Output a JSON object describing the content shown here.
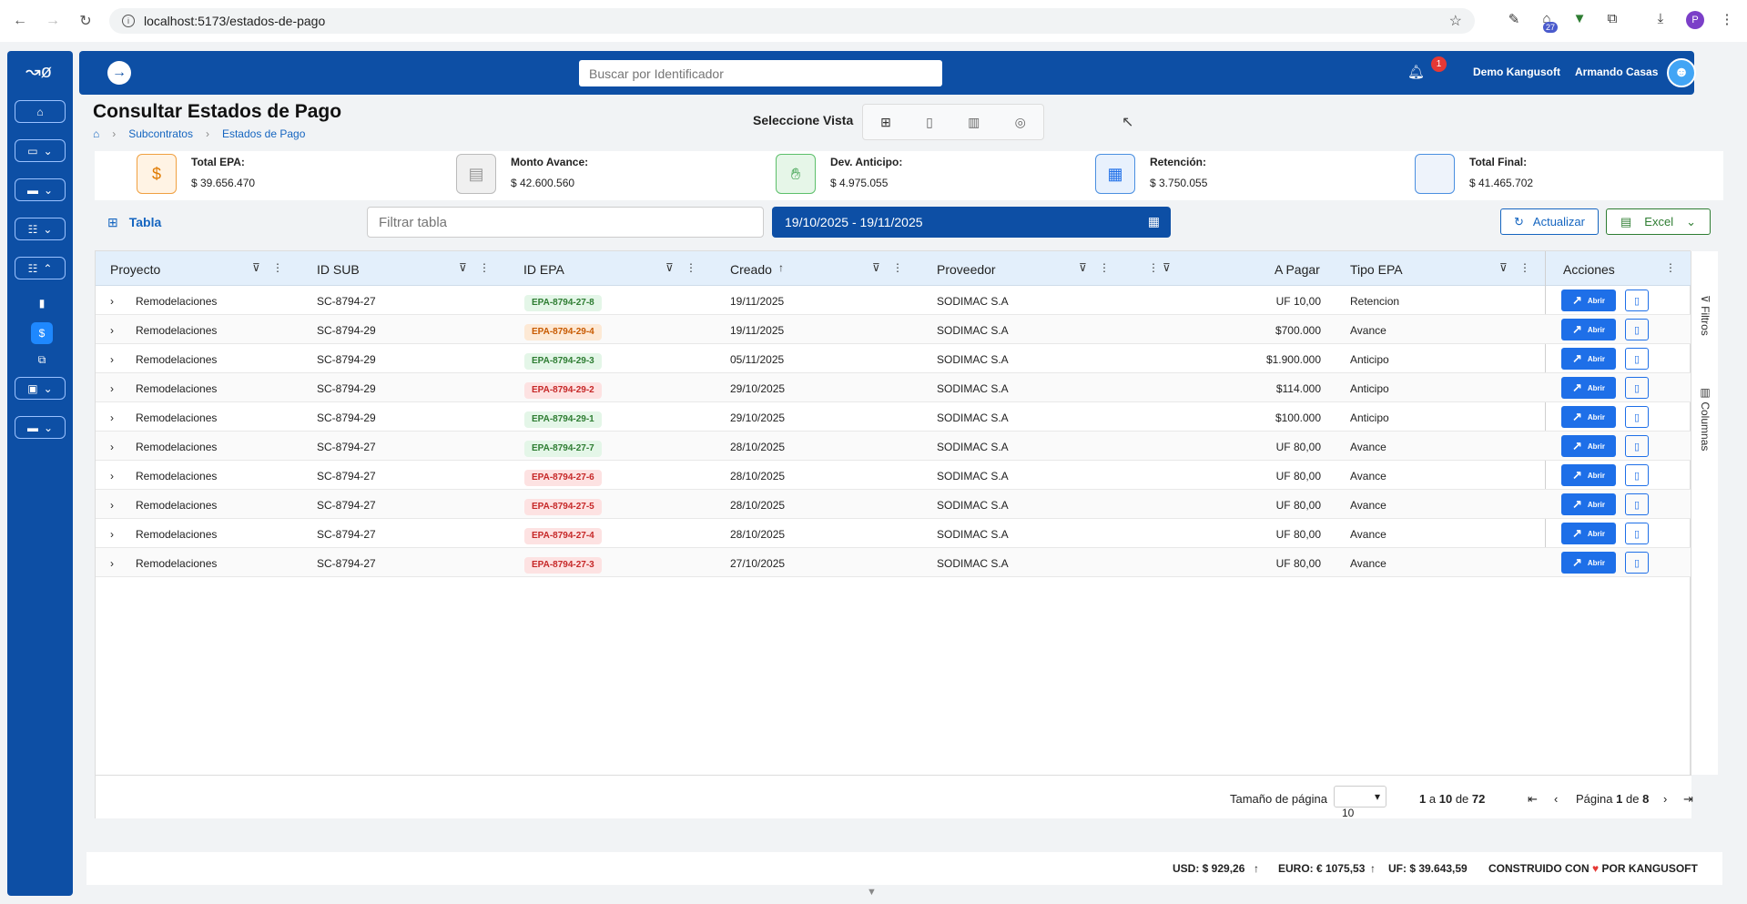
{
  "browser": {
    "url": "localhost:5173/estados-de-pago",
    "profile": "P",
    "ext_badge": "27"
  },
  "topbar": {
    "search_placeholder": "Buscar por Identificador",
    "notif_count": "1",
    "company": "Demo Kangusoft",
    "user": "Armando Casas"
  },
  "page": {
    "title": "Consultar Estados de Pago",
    "crumbs": [
      "Subcontratos",
      "Estados de Pago"
    ],
    "view_label": "Seleccione Vista"
  },
  "cards": [
    {
      "label": "Total EPA:",
      "value": "$ 39.656.470",
      "icon": "$"
    },
    {
      "label": "Monto Avance:",
      "value": "$ 42.600.560",
      "icon": "$"
    },
    {
      "label": "Dev. Anticipo:",
      "value": "$ 4.975.055",
      "icon": "hand"
    },
    {
      "label": "Retención:",
      "value": "$ 3.750.055",
      "icon": "calc"
    },
    {
      "label": "Total Final:",
      "value": "$ 41.465.702",
      "icon": ""
    }
  ],
  "toolbar": {
    "tab": "Tabla",
    "filter_placeholder": "Filtrar tabla",
    "date_range": "19/10/2025 - 19/11/2025",
    "refresh": "Actualizar",
    "excel": "Excel"
  },
  "columns": [
    "Proyecto",
    "ID SUB",
    "ID EPA",
    "Creado",
    "Proveedor",
    "A Pagar",
    "Tipo EPA",
    "Acciones"
  ],
  "rows": [
    {
      "proyecto": "Remodelaciones",
      "sub": "SC-8794-27",
      "epa": "EPA-8794-27-8",
      "status": "g",
      "creado": "19/11/2025",
      "prov": "SODIMAC S.A",
      "pagar": "UF 10,00",
      "tipo": "Retencion"
    },
    {
      "proyecto": "Remodelaciones",
      "sub": "SC-8794-29",
      "epa": "EPA-8794-29-4",
      "status": "o",
      "creado": "19/11/2025",
      "prov": "SODIMAC S.A",
      "pagar": "$700.000",
      "tipo": "Avance"
    },
    {
      "proyecto": "Remodelaciones",
      "sub": "SC-8794-29",
      "epa": "EPA-8794-29-3",
      "status": "g",
      "creado": "05/11/2025",
      "prov": "SODIMAC S.A",
      "pagar": "$1.900.000",
      "tipo": "Anticipo"
    },
    {
      "proyecto": "Remodelaciones",
      "sub": "SC-8794-29",
      "epa": "EPA-8794-29-2",
      "status": "r",
      "creado": "29/10/2025",
      "prov": "SODIMAC S.A",
      "pagar": "$114.000",
      "tipo": "Anticipo"
    },
    {
      "proyecto": "Remodelaciones",
      "sub": "SC-8794-29",
      "epa": "EPA-8794-29-1",
      "status": "g",
      "creado": "29/10/2025",
      "prov": "SODIMAC S.A",
      "pagar": "$100.000",
      "tipo": "Anticipo"
    },
    {
      "proyecto": "Remodelaciones",
      "sub": "SC-8794-27",
      "epa": "EPA-8794-27-7",
      "status": "g",
      "creado": "28/10/2025",
      "prov": "SODIMAC S.A",
      "pagar": "UF 80,00",
      "tipo": "Avance"
    },
    {
      "proyecto": "Remodelaciones",
      "sub": "SC-8794-27",
      "epa": "EPA-8794-27-6",
      "status": "r",
      "creado": "28/10/2025",
      "prov": "SODIMAC S.A",
      "pagar": "UF 80,00",
      "tipo": "Avance"
    },
    {
      "proyecto": "Remodelaciones",
      "sub": "SC-8794-27",
      "epa": "EPA-8794-27-5",
      "status": "r",
      "creado": "28/10/2025",
      "prov": "SODIMAC S.A",
      "pagar": "UF 80,00",
      "tipo": "Avance"
    },
    {
      "proyecto": "Remodelaciones",
      "sub": "SC-8794-27",
      "epa": "EPA-8794-27-4",
      "status": "r",
      "creado": "28/10/2025",
      "prov": "SODIMAC S.A",
      "pagar": "UF 80,00",
      "tipo": "Avance"
    },
    {
      "proyecto": "Remodelaciones",
      "sub": "SC-8794-27",
      "epa": "EPA-8794-27-3",
      "status": "r",
      "creado": "27/10/2025",
      "prov": "SODIMAC S.A",
      "pagar": "UF 80,00",
      "tipo": "Avance"
    }
  ],
  "action_label": "Abrir",
  "side_panel": {
    "filters": "Filtros",
    "columns": "Columnas"
  },
  "pager": {
    "size_label": "Tamaño de página",
    "size": "10",
    "from": "1",
    "to": "10",
    "total": "72",
    "page_word": "Página",
    "page": "1",
    "of": "de",
    "pages": "8",
    "a": "a"
  },
  "footer": {
    "usd": "USD: $ 929,26",
    "euro": "EURO: € 1075,53",
    "uf": "UF: $ 39.643,59",
    "built": "CONSTRUIDO CON",
    "by": "POR KANGUSOFT"
  },
  "colors": {
    "primary": "#0d4fa5",
    "accent": "#1e6fe8"
  }
}
